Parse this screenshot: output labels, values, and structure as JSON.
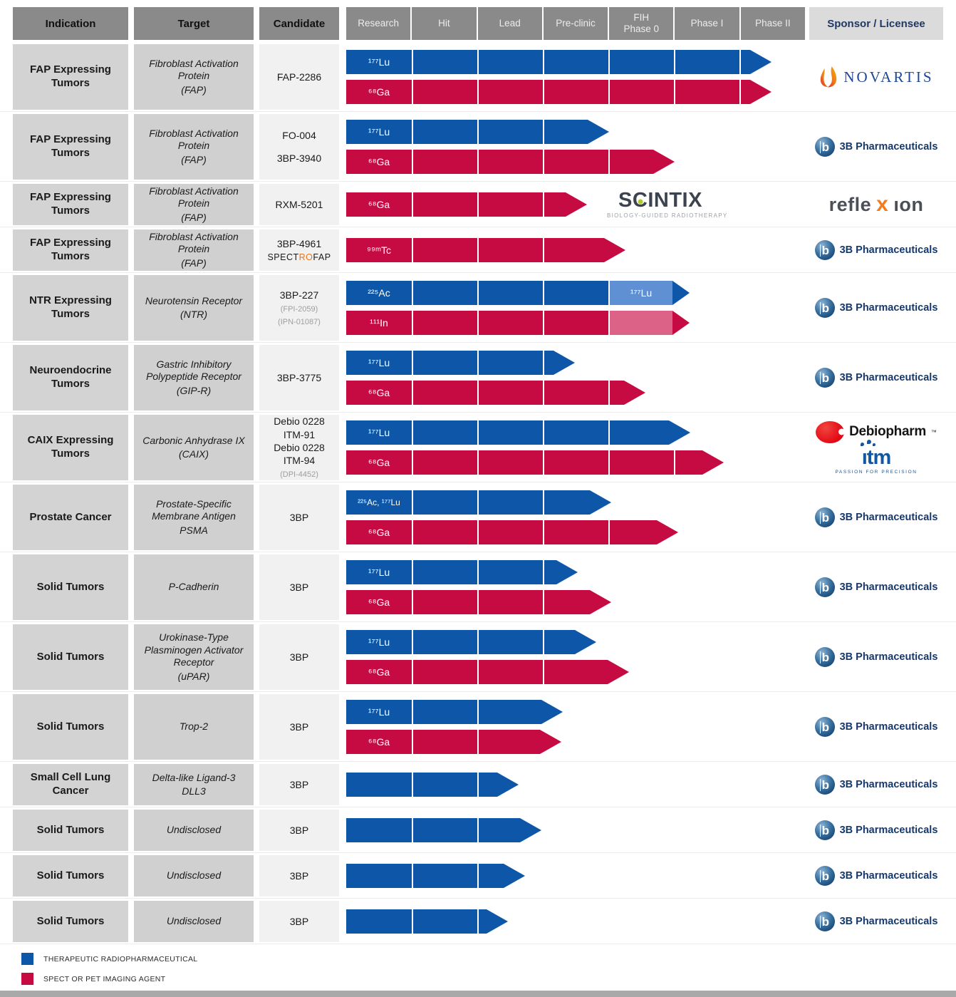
{
  "header": {
    "indication": "Indication",
    "target": "Target",
    "candidate": "Candidate",
    "phases": [
      [
        "Research"
      ],
      [
        "Hit"
      ],
      [
        "Lead"
      ],
      [
        "Pre-clinic"
      ],
      [
        "FIH",
        "Phase 0"
      ],
      [
        "Phase I"
      ],
      [
        "Phase II"
      ]
    ],
    "sponsor": "Sponsor / Licensee"
  },
  "colors": {
    "therapeutic": "#0e57a8",
    "imaging": "#c60b42",
    "therapeutic_light": "#5f90d4",
    "imaging_light": "#dc6288",
    "reflexion_orange": "#f47b20",
    "scintix_dot": "#b2c92a",
    "spectro_orange": "#e87722"
  },
  "sponsors": {
    "novartis": {
      "name": "NOVARTIS"
    },
    "bp": {
      "name": "3B Pharmaceuticals",
      "monogram": "b"
    },
    "reflexion": {
      "parts": [
        "refle",
        "x",
        "ıon"
      ]
    },
    "scintix": {
      "pre": "S",
      "c": "C",
      "post": "INTIX",
      "tagline": "BIOLOGY-GUIDED RADIOTHERAPY"
    },
    "debiopharm": {
      "name": "Debiopharm",
      "mark": "™"
    },
    "itm": {
      "name": "ıtm",
      "tagline": "PASSION FOR PRECISION"
    }
  },
  "legend": [
    {
      "key": "therapeutic",
      "label": "THERAPEUTIC RADIOPHARMACEUTICAL"
    },
    {
      "key": "imaging",
      "label": "SPECT OR PET IMAGING AGENT"
    }
  ],
  "chart_data": {
    "type": "table",
    "note": "Radiopharmaceutical development pipeline; phase track spans Research to Phase II (644px track, column width 92px). end = pixels of progress along track.",
    "phase_columns": [
      "Research",
      "Hit",
      "Lead",
      "Pre-clinic",
      "FIH Phase 0",
      "Phase I",
      "Phase II"
    ],
    "rows": [
      {
        "indication": "FAP Expressing Tumors",
        "target_lines": [
          "Fibroblast Activation Protein",
          "(FAP)"
        ],
        "candidate_lines": [
          {
            "text": "FAP-2286"
          }
        ],
        "size": "tall",
        "arrows": [
          {
            "kind": "therapeutic",
            "label": "¹⁷⁷Lu",
            "end": 597
          },
          {
            "kind": "imaging",
            "label": "⁶⁸Ga",
            "end": 597
          }
        ],
        "sponsor": [
          "novartis"
        ]
      },
      {
        "indication": "FAP Expressing Tumors",
        "target_lines": [
          "Fibroblast Activation Protein",
          "(FAP)"
        ],
        "candidate_lines": [
          {
            "text": "FO-004"
          },
          {
            "text": "3BP-3940"
          }
        ],
        "candidate_spread": true,
        "size": "tall",
        "arrows": [
          {
            "kind": "therapeutic",
            "label": "¹⁷⁷Lu",
            "end": 369
          },
          {
            "kind": "imaging",
            "label": "⁶⁸Ga",
            "end": 461
          }
        ],
        "sponsor": [
          "bp"
        ]
      },
      {
        "indication": "FAP Expressing Tumors",
        "target_lines": [
          "Fibroblast Activation Protein",
          "(FAP)"
        ],
        "candidate_lines": [
          {
            "text": "RXM-5201"
          }
        ],
        "size": "short",
        "arrows": [
          {
            "kind": "imaging",
            "label": "⁶⁸Ga",
            "end": 338
          }
        ],
        "track_logo": "scintix",
        "sponsor": [
          "reflexion"
        ]
      },
      {
        "indication": "FAP Expressing Tumors",
        "target_lines": [
          "Fibroblast Activation Protein",
          "(FAP)"
        ],
        "candidate_lines": [
          {
            "text": "3BP-4961"
          },
          {
            "parts": [
              {
                "text": "SPECT"
              },
              {
                "text": "RO",
                "orange": true
              },
              {
                "text": "FAP"
              }
            ]
          }
        ],
        "size": "short",
        "arrows": [
          {
            "kind": "imaging",
            "label": "⁹⁹ᵐTc",
            "end": 392
          }
        ],
        "sponsor": [
          "bp"
        ]
      },
      {
        "indication": "NTR Expressing Tumors",
        "target_lines": [
          "Neurotensin Receptor",
          "(NTR)"
        ],
        "candidate_lines": [
          {
            "text": "3BP-227"
          },
          {
            "text": "(FPI-2059)",
            "muted": true
          },
          {
            "text": "(IPN-01087)",
            "muted": true
          }
        ],
        "size": "tall",
        "arrows": [
          {
            "kind": "therapeutic",
            "label": "²²⁵Ac",
            "end": 482,
            "tip_w": 24,
            "light": {
              "from": 368,
              "to": 458,
              "label": "¹⁷⁷Lu"
            }
          },
          {
            "kind": "imaging",
            "label": "¹¹¹In",
            "end": 482,
            "tip_w": 24,
            "light": {
              "from": 368,
              "to": 458
            }
          }
        ],
        "sponsor": [
          "bp"
        ]
      },
      {
        "indication": "Neuroendocrine Tumors",
        "target_lines": [
          "Gastric Inhibitory Polypeptide Receptor",
          "(GIP-R)"
        ],
        "candidate_lines": [
          {
            "text": "3BP-3775"
          }
        ],
        "size": "tall",
        "arrows": [
          {
            "kind": "therapeutic",
            "label": "¹⁷⁷Lu",
            "end": 321
          },
          {
            "kind": "imaging",
            "label": "⁶⁸Ga",
            "end": 420
          }
        ],
        "sponsor": [
          "bp"
        ]
      },
      {
        "indication": "CAIX Expressing Tumors",
        "target_lines": [
          "Carbonic Anhydrase IX",
          "(CAIX)"
        ],
        "candidate_lines": [
          {
            "text": "Debio 0228"
          },
          {
            "text": "ITM-91"
          },
          {
            "text": "Debio 0228"
          },
          {
            "text": "ITM-94"
          },
          {
            "text": "(DPI-4452)",
            "muted": true
          }
        ],
        "size": "tall",
        "arrows": [
          {
            "kind": "therapeutic",
            "label": "¹⁷⁷Lu",
            "end": 483
          },
          {
            "kind": "imaging",
            "label": "⁶⁸Ga",
            "end": 530
          }
        ],
        "sponsor": [
          "debiopharm",
          "itm"
        ]
      },
      {
        "indication": "Prostate Cancer",
        "target_lines": [
          "Prostate-Specific Membrane Antigen",
          "PSMA"
        ],
        "candidate_lines": [
          {
            "text": "3BP"
          }
        ],
        "size": "tall",
        "arrows": [
          {
            "kind": "therapeutic",
            "label": "²²⁵Ac, ¹⁷⁷Lu",
            "end": 372,
            "small_label": true
          },
          {
            "kind": "imaging",
            "label": "⁶⁸Ga",
            "end": 466
          }
        ],
        "sponsor": [
          "bp"
        ]
      },
      {
        "indication": "Solid Tumors",
        "target_lines": [
          "P-Cadherin"
        ],
        "candidate_lines": [
          {
            "text": "3BP"
          }
        ],
        "size": "tall",
        "arrows": [
          {
            "kind": "therapeutic",
            "label": "¹⁷⁷Lu",
            "end": 325
          },
          {
            "kind": "imaging",
            "label": "⁶⁸Ga",
            "end": 372
          }
        ],
        "sponsor": [
          "bp"
        ]
      },
      {
        "indication": "Solid Tumors",
        "target_lines": [
          "Urokinase-Type Plasminogen Activator Receptor",
          "(uPAR)"
        ],
        "candidate_lines": [
          {
            "text": "3BP"
          }
        ],
        "size": "tall",
        "arrows": [
          {
            "kind": "therapeutic",
            "label": "¹⁷⁷Lu",
            "end": 351
          },
          {
            "kind": "imaging",
            "label": "⁶⁸Ga",
            "end": 397
          }
        ],
        "sponsor": [
          "bp"
        ]
      },
      {
        "indication": "Solid Tumors",
        "target_lines": [
          "Trop-2"
        ],
        "candidate_lines": [
          {
            "text": "3BP"
          }
        ],
        "size": "tall",
        "arrows": [
          {
            "kind": "therapeutic",
            "label": "¹⁷⁷Lu",
            "end": 304
          },
          {
            "kind": "imaging",
            "label": "⁶⁸Ga",
            "end": 302
          }
        ],
        "sponsor": [
          "bp"
        ]
      },
      {
        "indication": "Small Cell Lung Cancer",
        "target_lines": [
          "Delta-like Ligand-3",
          "DLL3"
        ],
        "candidate_lines": [
          {
            "text": "3BP"
          }
        ],
        "size": "short",
        "arrows": [
          {
            "kind": "therapeutic",
            "label": "",
            "end": 242
          }
        ],
        "sponsor": [
          "bp"
        ]
      },
      {
        "indication": "Solid Tumors",
        "target_lines": [
          "Undisclosed"
        ],
        "candidate_lines": [
          {
            "text": "3BP"
          }
        ],
        "size": "short",
        "arrows": [
          {
            "kind": "therapeutic",
            "label": "",
            "end": 274
          }
        ],
        "sponsor": [
          "bp"
        ]
      },
      {
        "indication": "Solid Tumors",
        "target_lines": [
          "Undisclosed"
        ],
        "candidate_lines": [
          {
            "text": "3BP"
          }
        ],
        "size": "short",
        "arrows": [
          {
            "kind": "therapeutic",
            "label": "",
            "end": 251
          }
        ],
        "sponsor": [
          "bp"
        ]
      },
      {
        "indication": "Solid Tumors",
        "target_lines": [
          "Undisclosed"
        ],
        "candidate_lines": [
          {
            "text": "3BP"
          }
        ],
        "size": "short",
        "arrows": [
          {
            "kind": "therapeutic",
            "label": "",
            "end": 227
          }
        ],
        "sponsor": [
          "bp"
        ]
      }
    ]
  }
}
